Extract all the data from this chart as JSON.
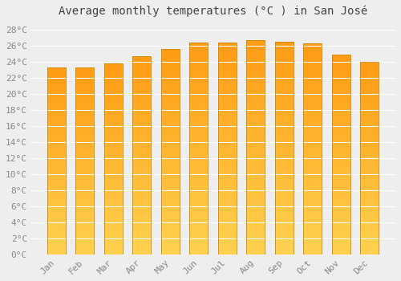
{
  "title": "Average monthly temperatures (°C ) in San José",
  "months": [
    "Jan",
    "Feb",
    "Mar",
    "Apr",
    "May",
    "Jun",
    "Jul",
    "Aug",
    "Sep",
    "Oct",
    "Nov",
    "Dec"
  ],
  "temperatures": [
    23.3,
    23.3,
    23.8,
    24.7,
    25.6,
    26.4,
    26.4,
    26.7,
    26.5,
    26.3,
    24.9,
    24.0
  ],
  "bar_color_top": "#FFA020",
  "bar_color_bottom": "#FFD060",
  "bar_edge_color": "#CC8800",
  "background_color": "#eeeeee",
  "plot_bg_color": "#eeeeee",
  "grid_color": "#ffffff",
  "ylim": [
    0,
    29
  ],
  "yticks": [
    0,
    2,
    4,
    6,
    8,
    10,
    12,
    14,
    16,
    18,
    20,
    22,
    24,
    26,
    28
  ],
  "ytick_labels": [
    "0°C",
    "2°C",
    "4°C",
    "6°C",
    "8°C",
    "10°C",
    "12°C",
    "14°C",
    "16°C",
    "18°C",
    "20°C",
    "22°C",
    "24°C",
    "26°C",
    "28°C"
  ],
  "title_fontsize": 10,
  "tick_fontsize": 8,
  "tick_color": "#888888",
  "bar_width": 0.65
}
